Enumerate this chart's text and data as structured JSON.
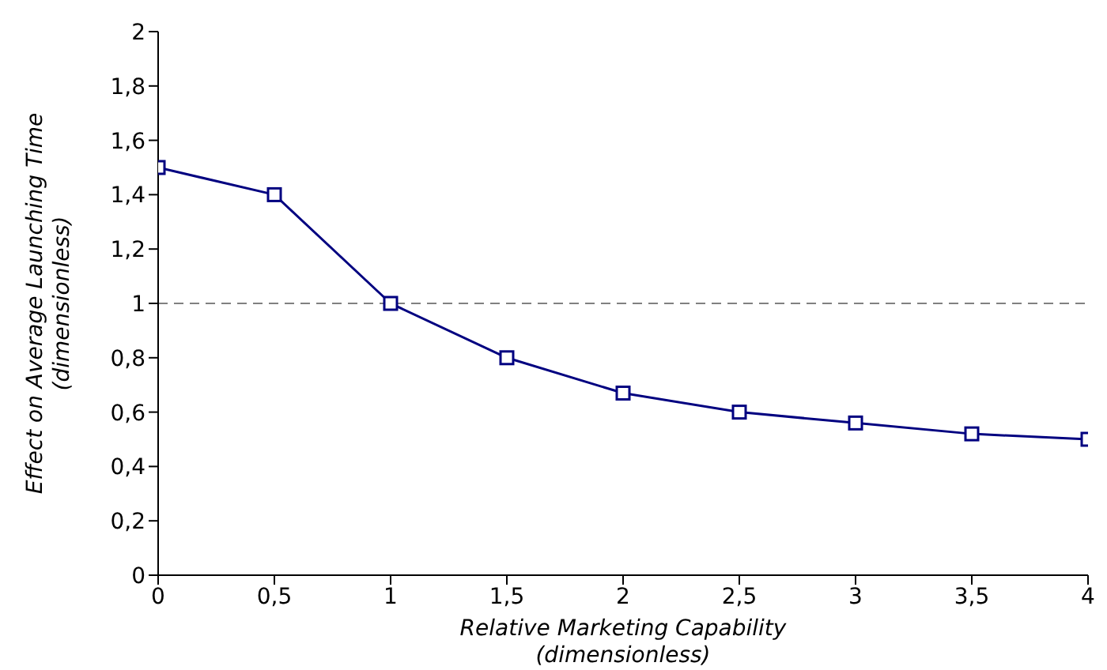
{
  "chart_data": {
    "type": "line",
    "xlabel": "Relative Marketing Capability\n(dimensionless)",
    "ylabel": "Effect on Average Launching Time\n(dimensionless)",
    "x": [
      0,
      0.5,
      1,
      1.5,
      2,
      2.5,
      3,
      3.5,
      4
    ],
    "series": [
      {
        "color": "#000080",
        "values": [
          1.5,
          1.4,
          1.0,
          0.8,
          0.67,
          0.6,
          0.56,
          0.52,
          0.5
        ]
      }
    ],
    "xlim": [
      0,
      4
    ],
    "xticks": [
      0,
      {
        "value": 0.5,
        "label": "0,5"
      },
      1,
      {
        "value": 1.5,
        "label": "1,5"
      },
      2,
      {
        "value": 2.5,
        "label": "2,5"
      },
      3,
      {
        "value": 3.5,
        "label": "3,5"
      },
      4
    ],
    "ylim": [
      0,
      2
    ],
    "yticks": [
      0,
      {
        "value": 0.2,
        "label": "0,2"
      },
      {
        "value": 0.4,
        "label": "0,4"
      },
      {
        "value": 0.6,
        "label": "0,6"
      },
      {
        "value": 0.8,
        "label": "0,8"
      },
      1,
      {
        "value": 1.2,
        "label": "1,2"
      },
      {
        "value": 1.4,
        "label": "1,4"
      },
      {
        "value": 1.6,
        "label": "1,6"
      },
      {
        "value": 1.8,
        "label": "1,8"
      },
      2
    ],
    "ref_lines": [
      {
        "axis": "y",
        "value": 1,
        "color": "#808080",
        "line_style": "dashed"
      }
    ],
    "grid": false,
    "legend": false,
    "marker": "square",
    "line_style": "solid"
  }
}
